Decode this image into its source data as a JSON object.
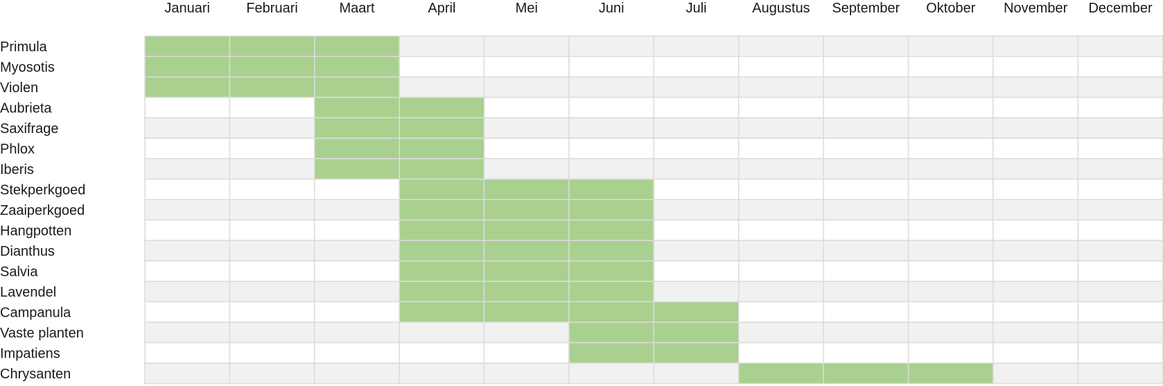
{
  "chart_data": {
    "type": "heatmap",
    "title": "",
    "xlabel": "",
    "ylabel": "",
    "months": [
      "Januari",
      "Februari",
      "Maart",
      "April",
      "Mei",
      "Juni",
      "Juli",
      "Augustus",
      "September",
      "Oktober",
      "November",
      "December"
    ],
    "plants": [
      {
        "name": "Primula",
        "bloom_months": [
          1,
          2,
          3
        ]
      },
      {
        "name": "Myosotis",
        "bloom_months": [
          1,
          2,
          3
        ]
      },
      {
        "name": "Violen",
        "bloom_months": [
          1,
          2,
          3
        ]
      },
      {
        "name": "Aubrieta",
        "bloom_months": [
          3,
          4
        ]
      },
      {
        "name": "Saxifrage",
        "bloom_months": [
          3,
          4
        ]
      },
      {
        "name": "Phlox",
        "bloom_months": [
          3,
          4
        ]
      },
      {
        "name": "Iberis",
        "bloom_months": [
          3,
          4
        ]
      },
      {
        "name": "Stekperkgoed",
        "bloom_months": [
          4,
          5,
          6
        ]
      },
      {
        "name": "Zaaiperkgoed",
        "bloom_months": [
          4,
          5,
          6
        ]
      },
      {
        "name": "Hangpotten",
        "bloom_months": [
          4,
          5,
          6
        ]
      },
      {
        "name": "Dianthus",
        "bloom_months": [
          4,
          5,
          6
        ]
      },
      {
        "name": "Salvia",
        "bloom_months": [
          4,
          5,
          6
        ]
      },
      {
        "name": "Lavendel",
        "bloom_months": [
          4,
          5,
          6
        ]
      },
      {
        "name": "Campanula",
        "bloom_months": [
          4,
          5,
          6,
          7
        ]
      },
      {
        "name": "Vaste planten",
        "bloom_months": [
          6,
          7
        ]
      },
      {
        "name": "Impatiens",
        "bloom_months": [
          6,
          7
        ]
      },
      {
        "name": "Chrysanten",
        "bloom_months": [
          8,
          9,
          10
        ]
      }
    ],
    "colors": {
      "bloom": "#a9d08e",
      "row_even": "#f0f1f0",
      "row_odd": "#ffffff",
      "gridline": "#dcdcdc"
    }
  }
}
